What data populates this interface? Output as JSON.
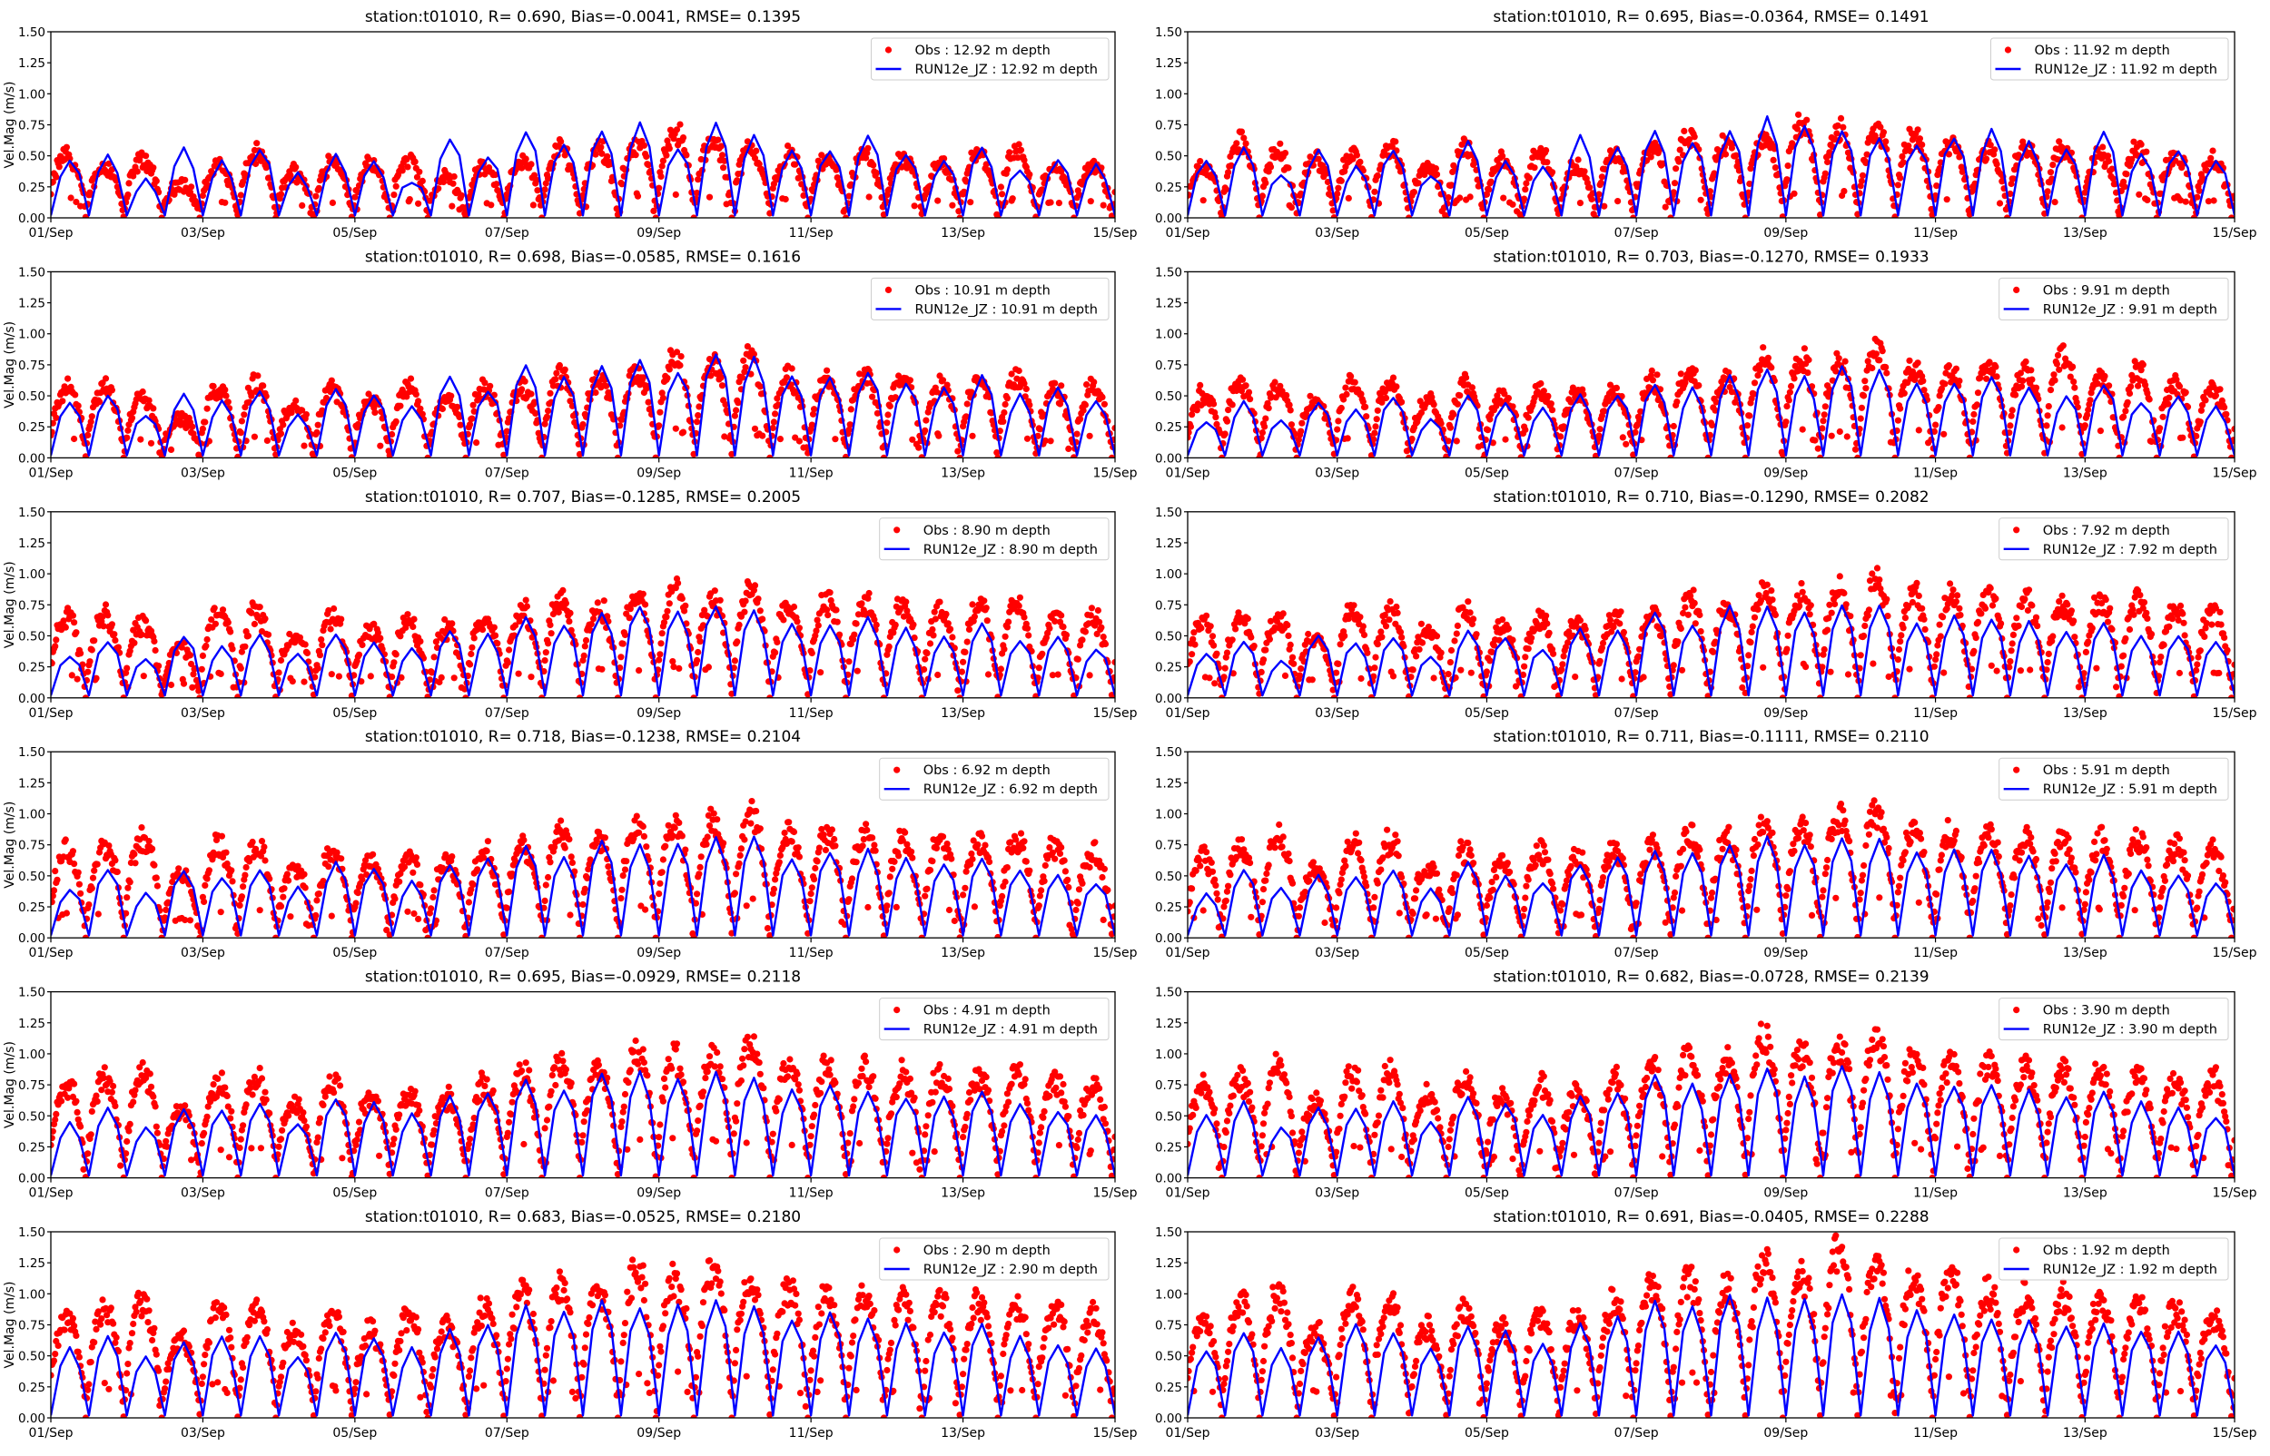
{
  "figure": {
    "colors": {
      "obs": "#ff0000",
      "model": "#0000ff",
      "axis": "#000000",
      "legend_border": "#cccccc"
    }
  },
  "axes": {
    "ylim": [
      0,
      1.5
    ],
    "y_ticks": [
      "0.00",
      "0.25",
      "0.50",
      "0.75",
      "1.00",
      "1.25",
      "1.50"
    ],
    "y_tick_values": [
      0,
      0.25,
      0.5,
      0.75,
      1.0,
      1.25,
      1.5
    ],
    "x_ticks": [
      "01/Sep",
      "03/Sep",
      "05/Sep",
      "07/Sep",
      "09/Sep",
      "11/Sep",
      "13/Sep",
      "15/Sep"
    ],
    "x_tick_days": [
      0,
      2,
      4,
      6,
      8,
      10,
      12,
      14
    ],
    "xlim_days": [
      0,
      14
    ]
  },
  "chart_data": [
    {
      "type": "scatter+line",
      "title": "station:t01010, R= 0.690, Bias=-0.0041, RMSE= 0.1395",
      "ylabel": "Vel.Mag (m/s)",
      "legend": [
        "Obs : 12.92 m depth",
        "RUN12e_JZ : 12.92 m depth"
      ],
      "legend_position": "top-right",
      "obs_half_day_peaks": [
        0.55,
        0.45,
        0.5,
        0.3,
        0.45,
        0.55,
        0.4,
        0.5,
        0.45,
        0.5,
        0.35,
        0.45,
        0.5,
        0.6,
        0.6,
        0.65,
        0.75,
        0.65,
        0.6,
        0.55,
        0.5,
        0.55,
        0.5,
        0.45,
        0.55,
        0.55,
        0.45,
        0.45
      ],
      "model_half_day_peaks": [
        0.45,
        0.5,
        0.3,
        0.55,
        0.45,
        0.55,
        0.35,
        0.5,
        0.45,
        0.3,
        0.65,
        0.5,
        0.7,
        0.6,
        0.7,
        0.75,
        0.55,
        0.75,
        0.65,
        0.55,
        0.55,
        0.65,
        0.5,
        0.45,
        0.55,
        0.4,
        0.45,
        0.42
      ]
    },
    {
      "type": "scatter+line",
      "title": "station:t01010, R= 0.695, Bias=-0.0364, RMSE= 0.1491",
      "ylabel": "",
      "legend": [
        "Obs : 11.92 m depth",
        "RUN12e_JZ : 11.92 m depth"
      ],
      "legend_position": "top-right",
      "obs_half_day_peaks": [
        0.45,
        0.65,
        0.55,
        0.5,
        0.55,
        0.6,
        0.45,
        0.6,
        0.5,
        0.55,
        0.45,
        0.55,
        0.6,
        0.7,
        0.65,
        0.7,
        0.8,
        0.75,
        0.75,
        0.7,
        0.65,
        0.6,
        0.65,
        0.6,
        0.55,
        0.6,
        0.55,
        0.5
      ],
      "model_half_day_peaks": [
        0.45,
        0.55,
        0.35,
        0.55,
        0.4,
        0.55,
        0.35,
        0.6,
        0.45,
        0.4,
        0.65,
        0.55,
        0.7,
        0.6,
        0.7,
        0.8,
        0.75,
        0.7,
        0.65,
        0.6,
        0.65,
        0.7,
        0.6,
        0.55,
        0.7,
        0.5,
        0.55,
        0.45
      ]
    },
    {
      "type": "scatter+line",
      "title": "station:t01010, R= 0.698, Bias=-0.0585, RMSE= 0.1616",
      "ylabel": "Vel.Mag (m/s)",
      "legend": [
        "Obs : 10.91 m depth",
        "RUN12e_JZ : 10.91 m depth"
      ],
      "legend_position": "top-right",
      "obs_half_day_peaks": [
        0.6,
        0.6,
        0.55,
        0.35,
        0.6,
        0.65,
        0.45,
        0.6,
        0.5,
        0.6,
        0.5,
        0.6,
        0.6,
        0.7,
        0.7,
        0.75,
        0.85,
        0.8,
        0.85,
        0.7,
        0.7,
        0.7,
        0.7,
        0.65,
        0.65,
        0.7,
        0.6,
        0.6
      ],
      "model_half_day_peaks": [
        0.45,
        0.5,
        0.35,
        0.5,
        0.45,
        0.55,
        0.35,
        0.55,
        0.5,
        0.4,
        0.65,
        0.55,
        0.75,
        0.65,
        0.75,
        0.8,
        0.7,
        0.85,
        0.8,
        0.65,
        0.65,
        0.7,
        0.6,
        0.55,
        0.65,
        0.5,
        0.55,
        0.45
      ]
    },
    {
      "type": "scatter+line",
      "title": "station:t01010, R= 0.703, Bias=-0.1270, RMSE= 0.1933",
      "ylabel": "",
      "legend": [
        "Obs : 9.91 m depth",
        "RUN12e_JZ : 9.91 m depth"
      ],
      "legend_position": "top-right",
      "obs_half_day_peaks": [
        0.55,
        0.65,
        0.6,
        0.5,
        0.65,
        0.65,
        0.5,
        0.65,
        0.55,
        0.6,
        0.55,
        0.6,
        0.65,
        0.75,
        0.7,
        0.85,
        0.85,
        0.8,
        0.95,
        0.8,
        0.75,
        0.8,
        0.75,
        0.9,
        0.7,
        0.75,
        0.65,
        0.6
      ],
      "model_half_day_peaks": [
        0.3,
        0.45,
        0.3,
        0.45,
        0.4,
        0.5,
        0.3,
        0.5,
        0.45,
        0.4,
        0.5,
        0.5,
        0.6,
        0.55,
        0.65,
        0.7,
        0.65,
        0.75,
        0.7,
        0.6,
        0.6,
        0.65,
        0.55,
        0.5,
        0.6,
        0.45,
        0.5,
        0.4
      ]
    },
    {
      "type": "scatter+line",
      "title": "station:t01010, R= 0.707, Bias=-0.1285, RMSE= 0.2005",
      "ylabel": "Vel.Mag (m/s)",
      "legend": [
        "Obs : 8.90 m depth",
        "RUN12e_JZ : 8.90 m depth"
      ],
      "legend_position": "top-right",
      "obs_half_day_peaks": [
        0.7,
        0.7,
        0.65,
        0.45,
        0.75,
        0.75,
        0.55,
        0.7,
        0.6,
        0.65,
        0.6,
        0.7,
        0.75,
        0.85,
        0.8,
        0.9,
        0.95,
        0.85,
        0.95,
        0.8,
        0.85,
        0.85,
        0.8,
        0.75,
        0.8,
        0.8,
        0.7,
        0.7
      ],
      "model_half_day_peaks": [
        0.35,
        0.45,
        0.3,
        0.5,
        0.4,
        0.5,
        0.35,
        0.5,
        0.45,
        0.4,
        0.55,
        0.5,
        0.65,
        0.6,
        0.7,
        0.75,
        0.7,
        0.75,
        0.7,
        0.6,
        0.6,
        0.65,
        0.55,
        0.5,
        0.6,
        0.45,
        0.5,
        0.4
      ]
    },
    {
      "type": "scatter+line",
      "title": "station:t01010, R= 0.710, Bias=-0.1290, RMSE= 0.2082",
      "ylabel": "",
      "legend": [
        "Obs : 7.92 m depth",
        "RUN12e_JZ : 7.92 m depth"
      ],
      "legend_position": "top-right",
      "obs_half_day_peaks": [
        0.65,
        0.7,
        0.7,
        0.55,
        0.75,
        0.75,
        0.6,
        0.75,
        0.6,
        0.7,
        0.65,
        0.7,
        0.75,
        0.85,
        0.8,
        0.95,
        0.9,
        0.95,
        1.0,
        0.9,
        0.85,
        0.9,
        0.85,
        0.8,
        0.85,
        0.85,
        0.75,
        0.75
      ],
      "model_half_day_peaks": [
        0.35,
        0.45,
        0.3,
        0.5,
        0.45,
        0.5,
        0.35,
        0.55,
        0.5,
        0.4,
        0.55,
        0.55,
        0.7,
        0.6,
        0.75,
        0.75,
        0.7,
        0.75,
        0.75,
        0.6,
        0.65,
        0.65,
        0.6,
        0.55,
        0.6,
        0.5,
        0.5,
        0.45
      ]
    },
    {
      "type": "scatter+line",
      "title": "station:t01010, R= 0.718, Bias=-0.1238, RMSE= 0.2104",
      "ylabel": "Vel.Mag (m/s)",
      "legend": [
        "Obs : 6.92 m depth",
        "RUN12e_JZ : 6.92 m depth"
      ],
      "legend_position": "top-right",
      "obs_half_day_peaks": [
        0.75,
        0.8,
        0.85,
        0.55,
        0.8,
        0.8,
        0.6,
        0.75,
        0.65,
        0.7,
        0.65,
        0.75,
        0.8,
        0.9,
        0.85,
        1.0,
        0.95,
        1.0,
        1.05,
        0.9,
        0.9,
        0.9,
        0.85,
        0.85,
        0.85,
        0.85,
        0.8,
        0.75
      ],
      "model_half_day_peaks": [
        0.4,
        0.55,
        0.35,
        0.55,
        0.5,
        0.55,
        0.4,
        0.6,
        0.55,
        0.45,
        0.6,
        0.65,
        0.75,
        0.65,
        0.8,
        0.75,
        0.75,
        0.8,
        0.8,
        0.65,
        0.7,
        0.7,
        0.65,
        0.6,
        0.65,
        0.55,
        0.5,
        0.45
      ]
    },
    {
      "type": "scatter+line",
      "title": "station:t01010, R= 0.711, Bias=-0.1111, RMSE= 0.2110",
      "ylabel": "",
      "legend": [
        "Obs : 5.91 m depth",
        "RUN12e_JZ : 5.91 m depth"
      ],
      "legend_position": "top-right",
      "obs_half_day_peaks": [
        0.7,
        0.8,
        0.85,
        0.6,
        0.8,
        0.85,
        0.6,
        0.75,
        0.65,
        0.75,
        0.7,
        0.75,
        0.8,
        0.9,
        0.85,
        1.0,
        0.95,
        1.05,
        1.1,
        0.95,
        0.9,
        0.9,
        0.85,
        0.85,
        0.85,
        0.85,
        0.8,
        0.75
      ],
      "model_half_day_peaks": [
        0.35,
        0.55,
        0.4,
        0.5,
        0.5,
        0.55,
        0.4,
        0.6,
        0.5,
        0.45,
        0.6,
        0.65,
        0.7,
        0.7,
        0.75,
        0.8,
        0.75,
        0.8,
        0.8,
        0.7,
        0.7,
        0.7,
        0.65,
        0.6,
        0.65,
        0.55,
        0.5,
        0.45
      ]
    },
    {
      "type": "scatter+line",
      "title": "station:t01010, R= 0.695, Bias=-0.0929, RMSE= 0.2118",
      "ylabel": "Vel.Mag (m/s)",
      "legend": [
        "Obs : 4.91 m depth",
        "RUN12e_JZ : 4.91 m depth"
      ],
      "legend_position": "top-right",
      "obs_half_day_peaks": [
        0.8,
        0.85,
        0.9,
        0.6,
        0.85,
        0.85,
        0.65,
        0.8,
        0.7,
        0.75,
        0.7,
        0.8,
        0.9,
        1.0,
        0.95,
        1.1,
        1.05,
        1.05,
        1.15,
        1.0,
        0.95,
        0.95,
        0.9,
        0.9,
        0.9,
        0.9,
        0.85,
        0.8
      ],
      "model_half_day_peaks": [
        0.45,
        0.55,
        0.4,
        0.55,
        0.55,
        0.6,
        0.45,
        0.65,
        0.6,
        0.5,
        0.65,
        0.7,
        0.8,
        0.7,
        0.85,
        0.85,
        0.8,
        0.85,
        0.8,
        0.7,
        0.75,
        0.7,
        0.65,
        0.65,
        0.7,
        0.6,
        0.55,
        0.5
      ]
    },
    {
      "type": "scatter+line",
      "title": "station:t01010, R= 0.682, Bias=-0.0728, RMSE= 0.2139",
      "ylabel": "",
      "legend": [
        "Obs : 3.90 m depth",
        "RUN12e_JZ : 3.90 m depth"
      ],
      "legend_position": "top-right",
      "obs_half_day_peaks": [
        0.8,
        0.85,
        0.95,
        0.65,
        0.9,
        0.9,
        0.7,
        0.85,
        0.7,
        0.8,
        0.75,
        0.85,
        0.95,
        1.05,
        1.0,
        1.2,
        1.1,
        1.15,
        1.2,
        1.05,
        1.0,
        1.0,
        0.95,
        0.95,
        0.95,
        0.9,
        0.85,
        0.85
      ],
      "model_half_day_peaks": [
        0.5,
        0.6,
        0.4,
        0.55,
        0.55,
        0.6,
        0.45,
        0.65,
        0.6,
        0.5,
        0.65,
        0.7,
        0.85,
        0.75,
        0.85,
        0.9,
        0.8,
        0.9,
        0.85,
        0.75,
        0.75,
        0.75,
        0.7,
        0.65,
        0.7,
        0.6,
        0.55,
        0.5
      ]
    },
    {
      "type": "scatter+line",
      "title": "station:t01010, R= 0.683, Bias=-0.0525, RMSE= 0.2180",
      "ylabel": "Vel.Mag (m/s)",
      "legend": [
        "Obs : 2.90 m depth",
        "RUN12e_JZ : 2.90 m depth"
      ],
      "legend_position": "top-right",
      "obs_half_day_peaks": [
        0.85,
        0.95,
        1.0,
        0.7,
        0.95,
        0.95,
        0.75,
        0.9,
        0.75,
        0.9,
        0.8,
        0.95,
        1.1,
        1.15,
        1.1,
        1.3,
        1.2,
        1.25,
        1.2,
        1.1,
        1.05,
        1.05,
        1.0,
        1.0,
        1.0,
        0.95,
        0.95,
        0.9
      ],
      "model_half_day_peaks": [
        0.55,
        0.65,
        0.5,
        0.6,
        0.65,
        0.65,
        0.5,
        0.7,
        0.65,
        0.55,
        0.7,
        0.75,
        0.9,
        0.85,
        0.95,
        0.9,
        0.9,
        0.95,
        0.9,
        0.8,
        0.85,
        0.8,
        0.75,
        0.7,
        0.75,
        0.65,
        0.6,
        0.55
      ]
    },
    {
      "type": "scatter+line",
      "title": "station:t01010, R= 0.691, Bias=-0.0405, RMSE= 0.2288",
      "ylabel": "",
      "legend": [
        "Obs : 1.92 m depth",
        "RUN12e_JZ : 1.92 m depth"
      ],
      "legend_position": "top-right",
      "obs_half_day_peaks": [
        0.85,
        1.0,
        1.05,
        0.75,
        1.05,
        1.0,
        0.8,
        0.95,
        0.8,
        0.9,
        0.85,
        1.0,
        1.15,
        1.2,
        1.1,
        1.35,
        1.25,
        1.45,
        1.3,
        1.2,
        1.25,
        1.1,
        1.05,
        1.05,
        1.0,
        1.0,
        0.95,
        0.9
      ],
      "model_half_day_peaks": [
        0.55,
        0.7,
        0.55,
        0.65,
        0.75,
        0.7,
        0.55,
        0.75,
        0.7,
        0.6,
        0.75,
        0.8,
        0.95,
        0.9,
        1.0,
        0.95,
        0.95,
        1.0,
        0.95,
        0.85,
        0.85,
        0.8,
        0.8,
        0.75,
        0.75,
        0.7,
        0.7,
        0.6
      ]
    }
  ]
}
